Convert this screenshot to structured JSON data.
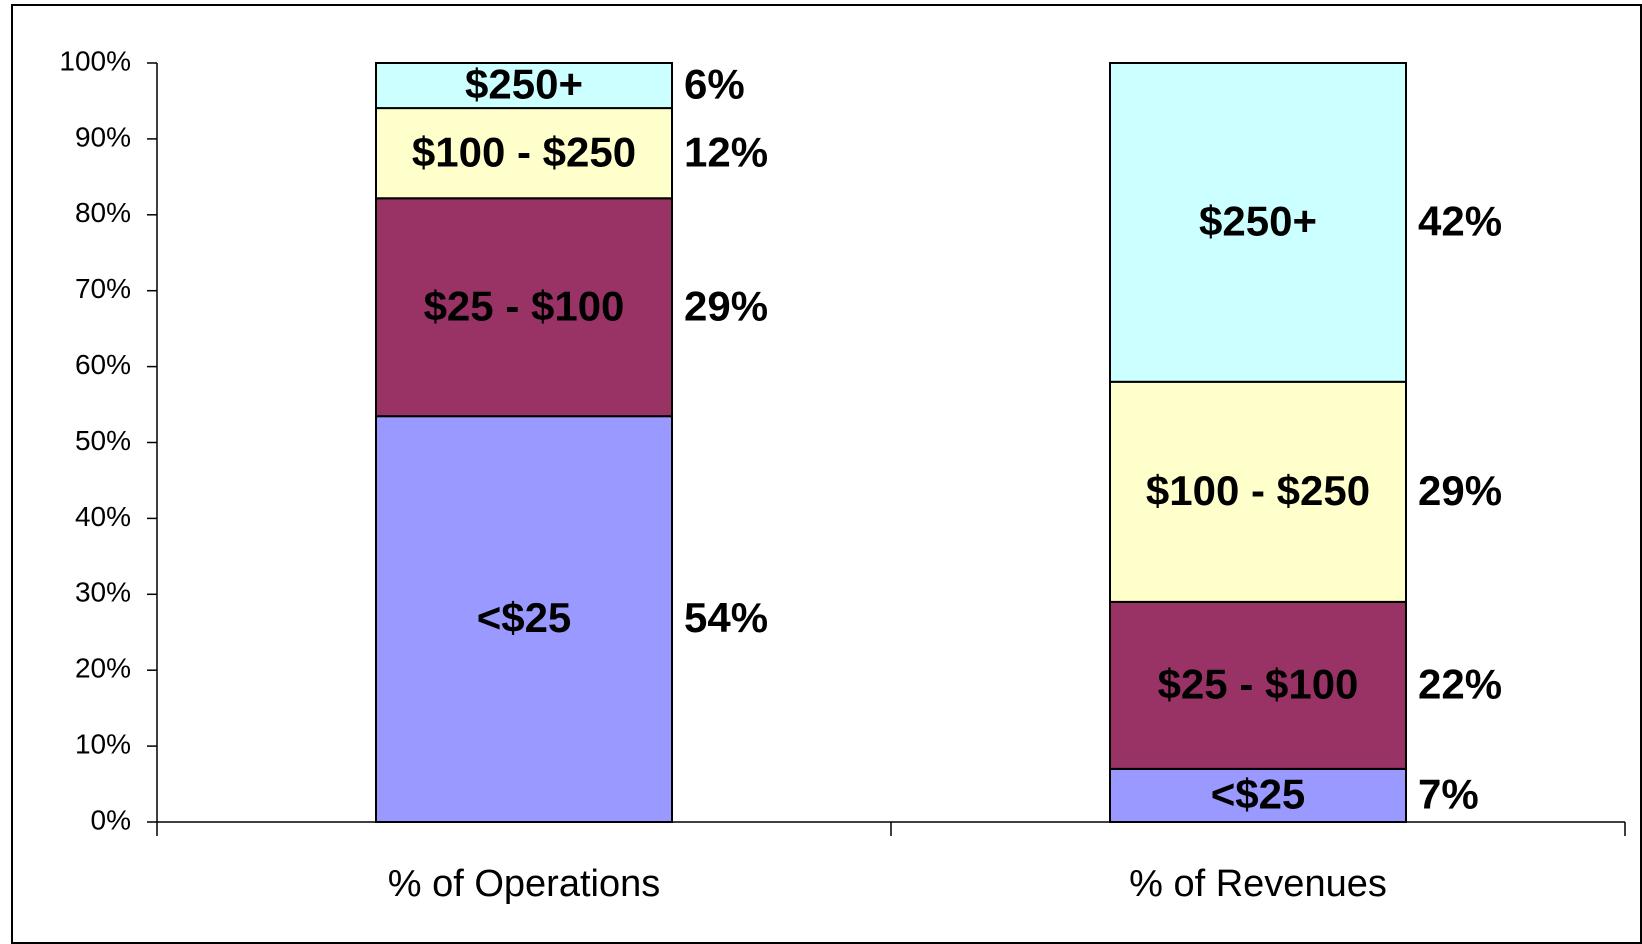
{
  "chart_data": {
    "type": "bar",
    "stacking": "percent",
    "categories": [
      "% of Operations",
      "% of Revenues"
    ],
    "series": [
      {
        "name": "<$25",
        "color": "#9999ff",
        "values": [
          54,
          7
        ],
        "value_labels": [
          "54%",
          "7%"
        ]
      },
      {
        "name": "$25 - $100",
        "color": "#993366",
        "values": [
          29,
          22
        ],
        "value_labels": [
          "29%",
          "22%"
        ]
      },
      {
        "name": "$100 - $250",
        "color": "#ffffcc",
        "values": [
          12,
          29
        ],
        "value_labels": [
          "12%",
          "29%"
        ]
      },
      {
        "name": "$250+",
        "color": "#ccffff",
        "values": [
          6,
          42
        ],
        "value_labels": [
          "6%",
          "42%"
        ]
      }
    ],
    "ylim": [
      0,
      100
    ],
    "yticks": [
      {
        "value": 0,
        "label": "0%"
      },
      {
        "value": 10,
        "label": "10%"
      },
      {
        "value": 20,
        "label": "20%"
      },
      {
        "value": 30,
        "label": "30%"
      },
      {
        "value": 40,
        "label": "40%"
      },
      {
        "value": 50,
        "label": "50%"
      },
      {
        "value": 60,
        "label": "60%"
      },
      {
        "value": 70,
        "label": "70%"
      },
      {
        "value": 80,
        "label": "80%"
      },
      {
        "value": 90,
        "label": "90%"
      },
      {
        "value": 100,
        "label": "100%"
      }
    ],
    "grid": false
  }
}
